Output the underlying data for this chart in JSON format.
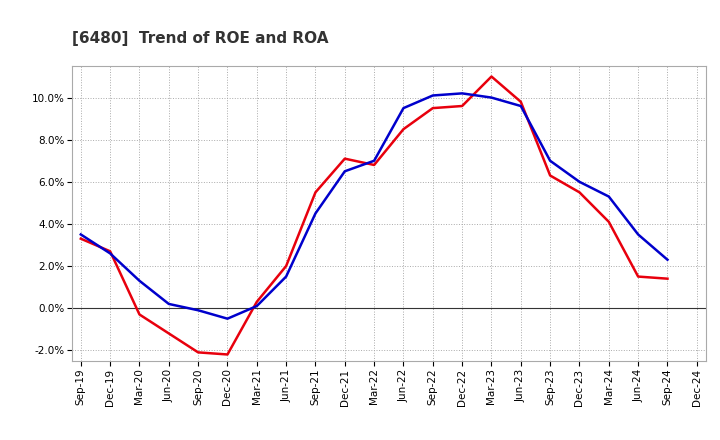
{
  "title": "[6480]  Trend of ROE and ROA",
  "x_labels": [
    "Sep-19",
    "Dec-19",
    "Mar-20",
    "Jun-20",
    "Sep-20",
    "Dec-20",
    "Mar-21",
    "Jun-21",
    "Sep-21",
    "Dec-21",
    "Mar-22",
    "Jun-22",
    "Sep-22",
    "Dec-22",
    "Mar-23",
    "Jun-23",
    "Sep-23",
    "Dec-23",
    "Mar-24",
    "Jun-24",
    "Sep-24",
    "Dec-24"
  ],
  "roe": [
    3.3,
    2.7,
    -0.3,
    -1.2,
    -2.1,
    -2.2,
    0.3,
    2.0,
    5.5,
    7.1,
    6.8,
    8.5,
    9.5,
    9.6,
    11.0,
    9.8,
    6.3,
    5.5,
    4.1,
    1.5,
    1.4,
    null
  ],
  "roa": [
    3.5,
    2.6,
    1.3,
    0.2,
    -0.1,
    -0.5,
    0.1,
    1.5,
    4.5,
    6.5,
    7.0,
    9.5,
    10.1,
    10.2,
    10.0,
    9.6,
    7.0,
    6.0,
    5.3,
    3.5,
    2.3,
    null
  ],
  "roe_color": "#e8000d",
  "roa_color": "#0000cc",
  "background_color": "#ffffff",
  "grid_color": "#aaaaaa",
  "ylim": [
    -2.5,
    11.5
  ],
  "yticks": [
    -2.0,
    0.0,
    2.0,
    4.0,
    6.0,
    8.0,
    10.0
  ],
  "line_width": 1.8,
  "title_fontsize": 11,
  "tick_fontsize": 7.5,
  "legend_fontsize": 9
}
